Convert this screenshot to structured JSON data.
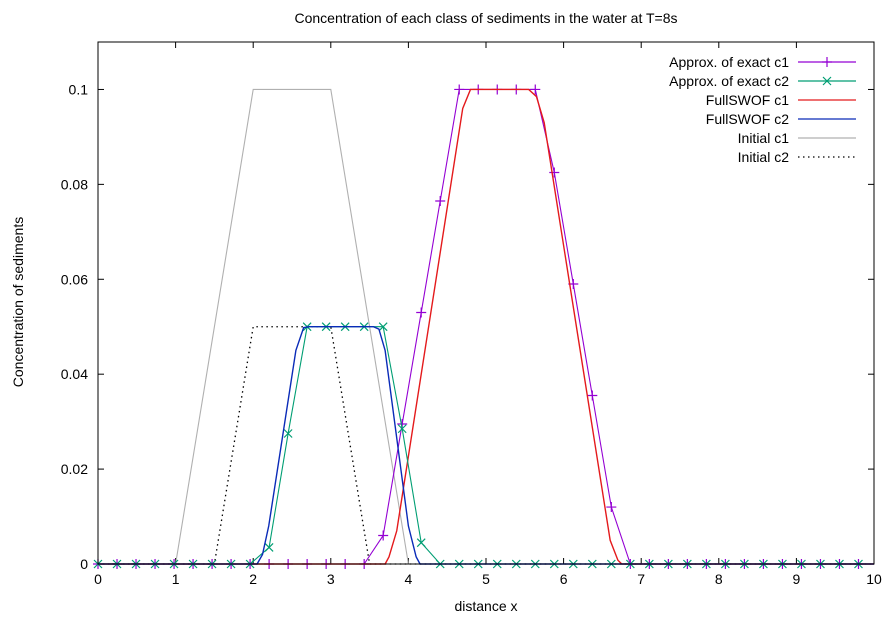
{
  "chart_data": {
    "type": "line",
    "title": "Concentration of each class of sediments in the water at T=8s",
    "xlabel": "distance x",
    "ylabel": "Concentration of sediments",
    "xlim": [
      0,
      10
    ],
    "ylim": [
      0,
      0.11
    ],
    "x_ticks": [
      0,
      1,
      2,
      3,
      4,
      5,
      6,
      7,
      8,
      9,
      10
    ],
    "x_tick_labels": [
      "0",
      "1",
      "2",
      "3",
      "4",
      "5",
      "6",
      "7",
      "8",
      "9",
      "10"
    ],
    "y_ticks": [
      0,
      0.02,
      0.04,
      0.06,
      0.08,
      0.1
    ],
    "y_tick_labels": [
      "0",
      "0.02",
      "0.04",
      "0.06",
      "0.08",
      "0.1"
    ],
    "grid": false,
    "legend_position": "top-right",
    "series": [
      {
        "name": "Approx. of exact c1",
        "color": "#9400d3",
        "style": "line-points",
        "marker": "plus",
        "x": [
          0.0,
          0.245,
          0.49,
          0.735,
          0.98,
          1.225,
          1.47,
          1.715,
          1.96,
          2.205,
          2.45,
          2.695,
          2.94,
          3.185,
          3.43,
          3.675,
          3.92,
          4.165,
          4.41,
          4.655,
          4.9,
          5.145,
          5.39,
          5.635,
          5.88,
          6.125,
          6.37,
          6.615,
          6.86,
          7.105,
          7.35,
          7.595,
          7.84,
          8.085,
          8.33,
          8.575,
          8.82,
          9.065,
          9.31,
          9.555,
          9.8
        ],
        "y": [
          0,
          0,
          0,
          0,
          0,
          0,
          0,
          0,
          0,
          0,
          0,
          0,
          0,
          0,
          0,
          0.006,
          0.0295,
          0.053,
          0.0765,
          0.1,
          0.1,
          0.1,
          0.1,
          0.1,
          0.0825,
          0.059,
          0.0355,
          0.012,
          0,
          0,
          0,
          0,
          0,
          0,
          0,
          0,
          0,
          0,
          0,
          0,
          0
        ]
      },
      {
        "name": "Approx. of exact c2",
        "color": "#009e73",
        "style": "line-points",
        "marker": "cross",
        "x": [
          0.0,
          0.245,
          0.49,
          0.735,
          0.98,
          1.225,
          1.47,
          1.715,
          1.96,
          2.205,
          2.45,
          2.695,
          2.94,
          3.185,
          3.43,
          3.675,
          3.92,
          4.165,
          4.41,
          4.655,
          4.9,
          5.145,
          5.39,
          5.635,
          5.88,
          6.125,
          6.37,
          6.615,
          6.86,
          7.105,
          7.35,
          7.595,
          7.84,
          8.085,
          8.33,
          8.575,
          8.82,
          9.065,
          9.31,
          9.555,
          9.8
        ],
        "y": [
          0,
          0,
          0,
          0,
          0,
          0,
          0,
          0,
          0,
          0.0035,
          0.0275,
          0.05,
          0.05,
          0.05,
          0.05,
          0.05,
          0.0285,
          0.0045,
          0,
          0,
          0,
          0,
          0,
          0,
          0,
          0,
          0,
          0,
          0,
          0,
          0,
          0,
          0,
          0,
          0,
          0,
          0,
          0,
          0,
          0,
          0
        ]
      },
      {
        "name": "FullSWOF c1",
        "color": "#e41a1c",
        "style": "line",
        "x": [
          0,
          3.7,
          3.75,
          3.85,
          4.7,
          4.8,
          5.55,
          5.65,
          5.75,
          6.6,
          6.7,
          6.75,
          10
        ],
        "y": [
          0,
          0,
          0.0015,
          0.007,
          0.096,
          0.1,
          0.1,
          0.0985,
          0.093,
          0.005,
          0.0008,
          0,
          0
        ]
      },
      {
        "name": "FullSWOF c2",
        "color": "#0a2bb8",
        "style": "line",
        "x": [
          0,
          2.05,
          2.12,
          2.2,
          2.55,
          2.65,
          2.72,
          3.55,
          3.62,
          3.7,
          4.0,
          4.1,
          4.15,
          10
        ],
        "y": [
          0,
          0,
          0.002,
          0.008,
          0.045,
          0.0498,
          0.05,
          0.05,
          0.0495,
          0.045,
          0.008,
          0.0015,
          0,
          0
        ]
      },
      {
        "name": "Initial c1",
        "color": "#b0b0b0",
        "style": "line",
        "x": [
          0,
          1,
          2,
          3,
          4,
          10
        ],
        "y": [
          0,
          0,
          0.1,
          0.1,
          0,
          0
        ]
      },
      {
        "name": "Initial c2",
        "color": "#000000",
        "style": "dotted",
        "x": [
          0,
          1.5,
          2,
          3,
          3.5,
          10
        ],
        "y": [
          0,
          0,
          0.05,
          0.05,
          0,
          0
        ]
      }
    ]
  }
}
